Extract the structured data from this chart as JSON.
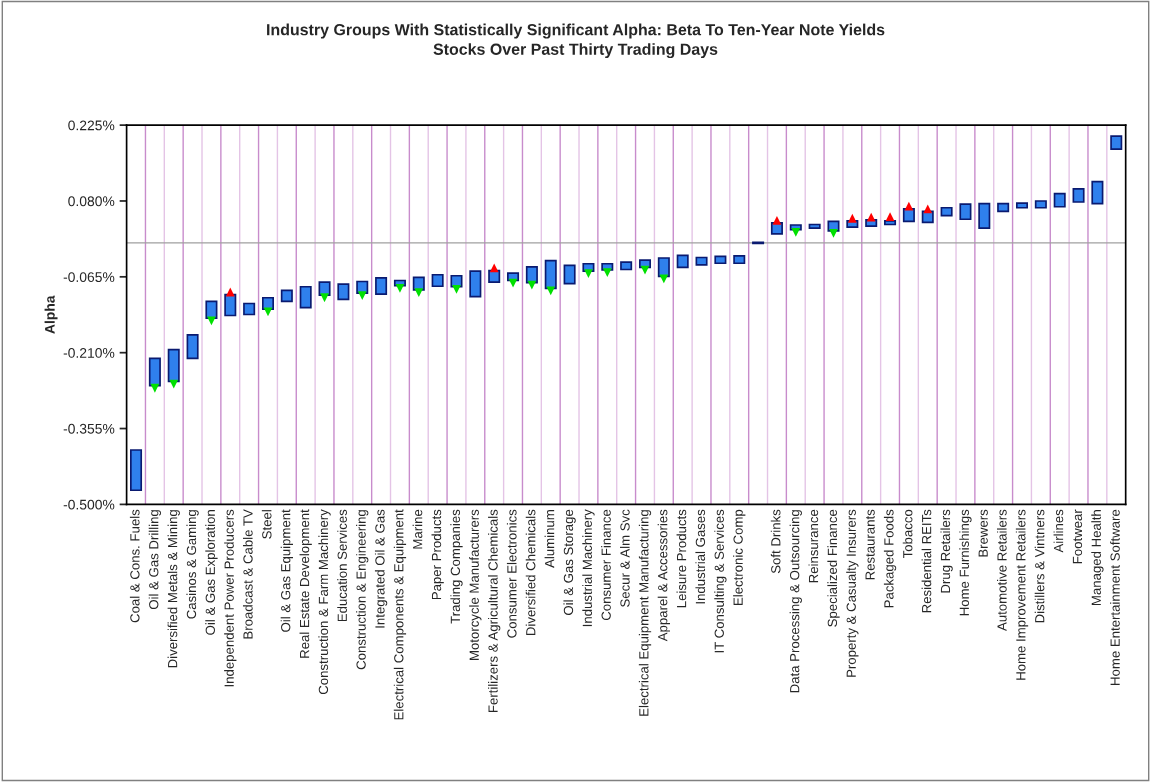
{
  "chart_data": {
    "type": "bar",
    "title": "Industry Groups With Statistically Significant Alpha: Beta To Ten-Year Note Yields",
    "subtitle": "Stocks Over Past Thirty Trading Days",
    "ylabel": "Alpha",
    "categories": [
      "Coal & Cons. Fuels",
      "Oil & Gas Drilling",
      "Diversified Metals & Mining",
      "Casinos & Gaming",
      "Oil & Gas Exploration",
      "Independent Power Producers",
      "Broadcast & Cable TV",
      "Steel",
      "Oil & Gas Equipment",
      "Real Estate Development",
      "Construction & Farm Machinery",
      "Education Services",
      "Construction & Engineering",
      "Integrated Oil & Gas",
      "Electrical Components & Equipment",
      "Marine",
      "Paper Products",
      "Trading Companies",
      "Motorcycle Manufacturers",
      "Fertilizers & Agricultural Chemicals",
      "Consumer Electronics",
      "Diversified Chemicals",
      "Aluminum",
      "Oil & Gas Storage",
      "Industrial Machinery",
      "Consumer Finance",
      "Secur & Alm Svc",
      "Electrical Equipment Manufacturing",
      "Apparel & Accessories",
      "Leisure Products",
      "Industrial Gases",
      "IT Consulting & Services",
      "Electronic Comp",
      null,
      "Soft Drinks",
      "Data Processing & Outsourcing",
      "Reinsurance",
      "Specialized Finance",
      "Property & Casualty Insurers",
      "Restaurants",
      "Packaged Foods",
      "Tobacco",
      "Residential REITs",
      "Drug Retailers",
      "Home Furnishings",
      "Brewers",
      "Automotive Retailers",
      "Home Improvement Retailers",
      "Distillers & Vintners",
      "Airlines",
      "Footwear",
      "Managed Health",
      "Home Entertainment Software"
    ],
    "series": [
      {
        "color": "#2f80ed",
        "base": [
          -0.473,
          -0.273,
          -0.265,
          -0.221,
          -0.144,
          -0.139,
          -0.137,
          -0.127,
          -0.112,
          -0.124,
          -0.1,
          -0.108,
          -0.096,
          -0.098,
          -0.082,
          -0.09,
          -0.083,
          -0.084,
          -0.103,
          -0.075,
          -0.072,
          -0.076,
          -0.087,
          -0.078,
          -0.054,
          -0.052,
          -0.051,
          -0.047,
          -0.064,
          -0.047,
          -0.042,
          -0.039,
          -0.039,
          -0.001,
          0.017,
          0.025,
          0.028,
          0.023,
          0.03,
          0.032,
          0.035,
          0.041,
          0.039,
          0.052,
          0.045,
          0.028,
          0.06,
          0.067,
          0.067,
          0.069,
          0.078,
          0.075,
          0.179
        ],
        "values": [
          0.077,
          0.052,
          0.061,
          0.045,
          0.032,
          0.04,
          0.021,
          0.022,
          0.021,
          0.04,
          0.025,
          0.029,
          0.022,
          0.031,
          0.01,
          0.024,
          0.022,
          0.021,
          0.049,
          0.022,
          0.014,
          0.03,
          0.053,
          0.035,
          0.014,
          0.012,
          0.014,
          0.014,
          0.035,
          0.023,
          0.014,
          0.013,
          0.014,
          0.002,
          0.021,
          0.009,
          0.007,
          0.018,
          0.012,
          0.012,
          0.007,
          0.024,
          0.021,
          0.015,
          0.029,
          0.047,
          0.015,
          0.009,
          0.013,
          0.025,
          0.025,
          0.042,
          0.025
        ]
      },
      {
        "type": "scatter",
        "color": "#ff0000",
        "marker": "triangle",
        "values": [
          null,
          null,
          null,
          null,
          null,
          -0.094,
          null,
          null,
          null,
          null,
          null,
          null,
          null,
          null,
          null,
          null,
          null,
          null,
          null,
          -0.048,
          null,
          null,
          null,
          null,
          null,
          null,
          null,
          null,
          null,
          null,
          null,
          null,
          null,
          null,
          0.043,
          null,
          null,
          null,
          0.047,
          0.049,
          0.05,
          0.07,
          0.065,
          null,
          null,
          null,
          null,
          null,
          null,
          null,
          null,
          null,
          null
        ]
      },
      {
        "type": "scatter",
        "color": "#00e000",
        "marker": "triangle_down",
        "values": [
          null,
          -0.278,
          -0.27,
          null,
          -0.149,
          null,
          null,
          -0.132,
          null,
          null,
          -0.105,
          null,
          -0.101,
          null,
          -0.087,
          -0.095,
          null,
          -0.089,
          null,
          null,
          -0.077,
          -0.081,
          -0.092,
          null,
          -0.059,
          -0.057,
          null,
          -0.052,
          -0.069,
          null,
          null,
          null,
          null,
          null,
          null,
          0.02,
          null,
          0.018,
          null,
          null,
          null,
          null,
          null,
          null,
          null,
          null,
          null,
          null,
          null,
          null,
          null,
          null,
          null
        ]
      }
    ],
    "ylim": [
      -0.5,
      0.225
    ],
    "yticks": [
      {
        "value": -0.5,
        "label": "-0.500%"
      },
      {
        "value": -0.355,
        "label": "-0.355%"
      },
      {
        "value": -0.21,
        "label": "-0.210%"
      },
      {
        "value": -0.065,
        "label": "-0.065%"
      },
      {
        "value": 0.08,
        "label": "0.080%"
      },
      {
        "value": 0.225,
        "label": "0.225%"
      }
    ],
    "ref_lines": [
      {
        "axis": "y",
        "value": 0,
        "color": "#a0a0a0"
      }
    ],
    "grid": "x"
  }
}
